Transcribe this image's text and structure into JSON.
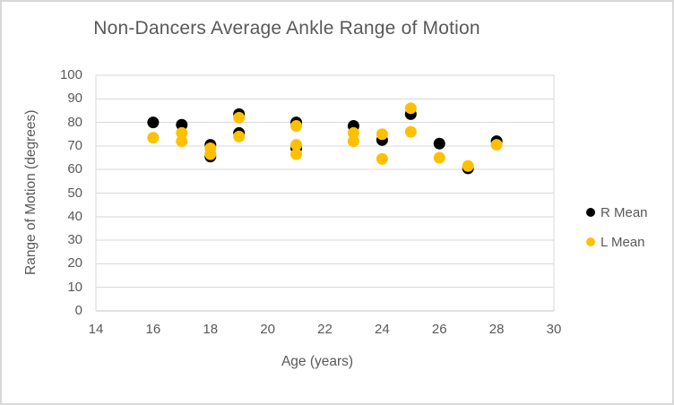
{
  "chart_data": {
    "type": "scatter",
    "title": "Non-Dancers Average Ankle Range of Motion",
    "xlabel": "Age (years)",
    "ylabel": "Range of Motion (degrees)",
    "xlim": [
      14,
      30
    ],
    "ylim": [
      0,
      100
    ],
    "x_ticks": [
      14,
      16,
      18,
      20,
      22,
      24,
      26,
      28,
      30
    ],
    "y_ticks": [
      0,
      10,
      20,
      30,
      40,
      50,
      60,
      70,
      80,
      90,
      100
    ],
    "grid": "horizontal",
    "legend_position": "right",
    "series": [
      {
        "name": "R Mean",
        "color": "#000000",
        "points": [
          [
            16,
            80
          ],
          [
            17,
            79
          ],
          [
            18,
            70.5
          ],
          [
            18,
            65.5
          ],
          [
            19,
            83.5
          ],
          [
            19,
            75.5
          ],
          [
            21,
            80
          ],
          [
            21,
            69
          ],
          [
            23,
            78.5
          ],
          [
            24,
            72.5
          ],
          [
            25,
            83.5
          ],
          [
            26,
            71
          ],
          [
            27,
            60.5
          ],
          [
            28,
            72
          ]
        ]
      },
      {
        "name": "L Mean",
        "color": "#FFC000",
        "points": [
          [
            16,
            73.5
          ],
          [
            17,
            75.5
          ],
          [
            17,
            72
          ],
          [
            18,
            69
          ],
          [
            18,
            66.5
          ],
          [
            19,
            82
          ],
          [
            19,
            74
          ],
          [
            21,
            78.5
          ],
          [
            21,
            70.5
          ],
          [
            21,
            66.5
          ],
          [
            23,
            75.5
          ],
          [
            23,
            72
          ],
          [
            24,
            75
          ],
          [
            24,
            64.5
          ],
          [
            25,
            86
          ],
          [
            25,
            76
          ],
          [
            26,
            65
          ],
          [
            27,
            61.5
          ],
          [
            28,
            70.5
          ]
        ]
      }
    ]
  },
  "colors": {
    "gridline": "#D9D9D9",
    "axis_line": "#C6C6C6",
    "text": "#595959",
    "background": "#FFFFFF"
  },
  "layout_values": {
    "marker_diameter_px": 13
  }
}
